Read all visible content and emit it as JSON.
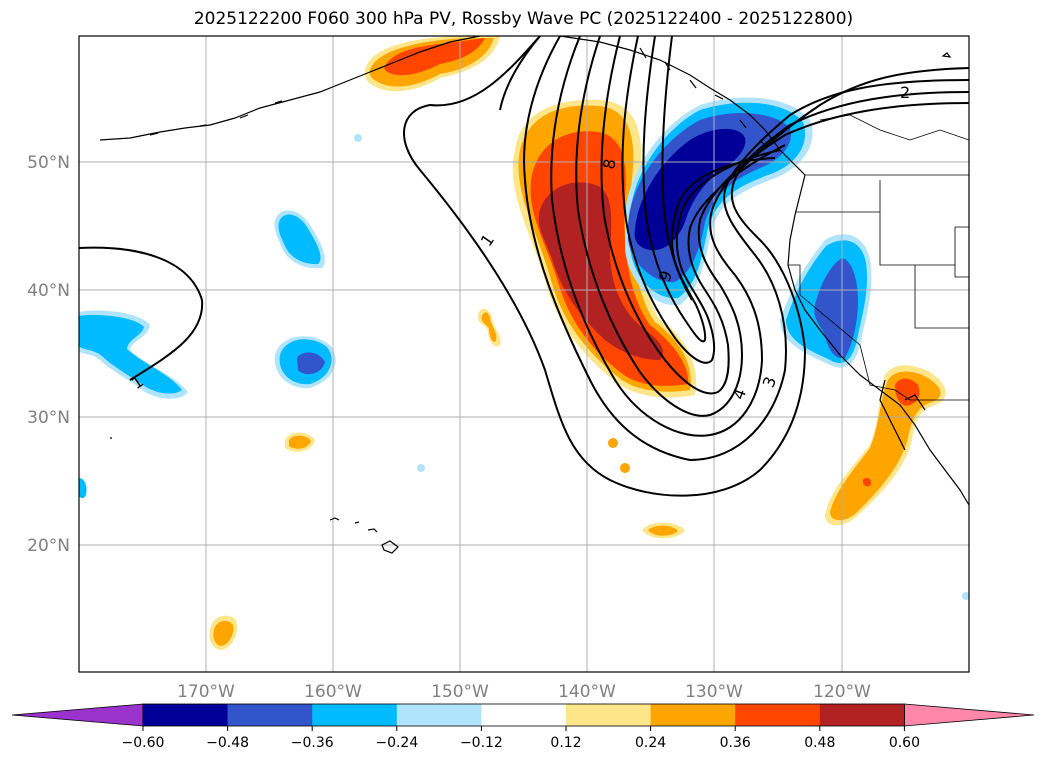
{
  "title": "2025122200 F060 300 hPa PV, Rossby Wave PC (2025122400 - 2025122800)",
  "lat_labels": [
    "50°N",
    "40°N",
    "30°N",
    "20°N"
  ],
  "lon_labels": [
    "170°W",
    "160°W",
    "150°W",
    "140°W",
    "130°W",
    "120°W"
  ],
  "pv_contour_labels": [
    "1",
    "8",
    "9",
    "4",
    "3",
    "2",
    "1"
  ],
  "colorbar": {
    "ticks": [
      "−0.60",
      "−0.48",
      "−0.36",
      "−0.24",
      "−0.12",
      "0.12",
      "0.24",
      "0.36",
      "0.48",
      "0.60"
    ],
    "colors": [
      "#9933cc",
      "#000099",
      "#3355cc",
      "#00bbff",
      "#b0e4fc",
      "#ffffff",
      "#fde68a",
      "#ffa500",
      "#ff4500",
      "#b22222",
      "#ff88aa"
    ]
  },
  "colors": {
    "pos_light": "#fde68a",
    "pos_orange": "#ffa500",
    "pos_red": "#ff4500",
    "pos_dark": "#b22222",
    "neg_light": "#b0e4fc",
    "neg_cyan": "#00bbff",
    "neg_blue": "#3355cc",
    "neg_navy": "#000099"
  }
}
